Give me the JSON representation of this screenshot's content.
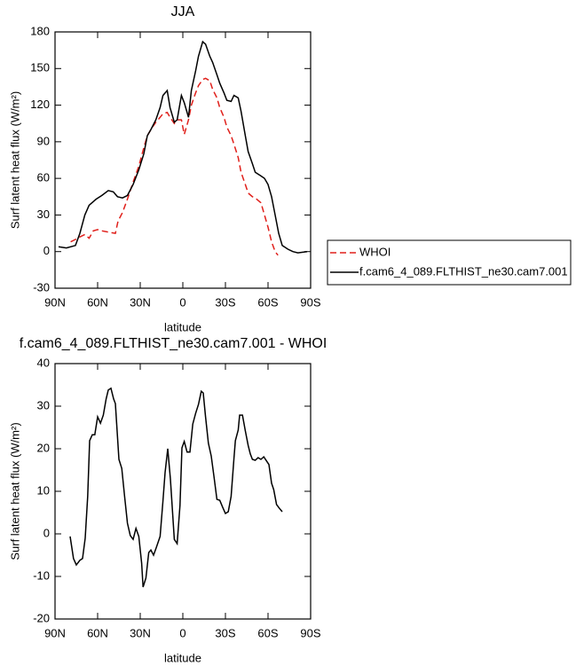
{
  "chart_data": [
    {
      "type": "line",
      "title": "JJA",
      "xlabel": "latitude",
      "ylabel": "Surf latent heat flux (W/m²)",
      "xlim": [
        90,
        -90
      ],
      "xticks": [
        {
          "value": 90,
          "label": "90N"
        },
        {
          "value": 60,
          "label": "60N"
        },
        {
          "value": 30,
          "label": "30N"
        },
        0,
        {
          "value": -30,
          "label": "30S"
        },
        {
          "value": -60,
          "label": "60S"
        },
        {
          "value": -90,
          "label": "90S"
        }
      ],
      "ylim": [
        -30,
        180
      ],
      "yticks": [
        -30,
        0,
        30,
        60,
        90,
        120,
        150,
        180
      ],
      "legend": "outside-right",
      "series": [
        {
          "name": "WHOI",
          "color": "#e0201b",
          "linestyle": "dashed",
          "x": [
            79,
            75.6,
            72.5,
            69,
            66,
            63,
            60,
            57,
            52.5,
            47.5,
            45.6,
            42.5,
            39,
            35,
            31,
            27.5,
            25,
            22.5,
            19,
            16,
            14,
            11,
            9,
            6,
            4,
            1,
            -1,
            -4,
            -6,
            -9,
            -11,
            -14,
            -16,
            -19,
            -21,
            -24,
            -26,
            -29,
            -31,
            -34,
            -36,
            -39,
            -41,
            -44,
            -46,
            -49,
            -51,
            -55,
            -57.5,
            -60,
            -62.5,
            -65,
            -67
          ],
          "values": [
            8,
            10,
            12,
            14,
            11,
            17,
            18,
            17,
            16,
            15,
            25,
            32,
            43,
            57,
            70,
            85,
            95,
            100,
            106,
            110,
            113,
            114,
            110,
            105,
            108,
            108,
            96,
            108,
            120,
            130,
            136,
            141,
            142,
            140,
            133,
            126,
            118,
            110,
            102,
            95,
            88,
            77,
            65,
            55,
            48,
            45,
            44,
            40,
            30,
            20,
            8,
            0,
            -3
          ]
        },
        {
          "name": "f.cam6_4_089.FLTHIST_ne30.cam7.001",
          "color": "#000000",
          "linestyle": "solid",
          "x": [
            87.5,
            82,
            75.6,
            72.5,
            69,
            66,
            61,
            57,
            52.5,
            49,
            46,
            42.5,
            39,
            35,
            31,
            27.5,
            25,
            22.5,
            19,
            16,
            14,
            11,
            9,
            6,
            4,
            1,
            -1,
            -4,
            -6,
            -9,
            -11,
            -14,
            -16,
            -19,
            -21,
            -24,
            -26,
            -29,
            -31,
            -34,
            -36,
            -39,
            -41,
            -44,
            -46,
            -49,
            -51,
            -55,
            -57.5,
            -60,
            -62.5,
            -65,
            -67.5,
            -70,
            -74,
            -77.5,
            -81,
            -87.5
          ],
          "values": [
            4,
            3,
            5,
            15,
            30,
            38,
            43,
            46,
            50,
            49,
            45,
            44,
            46,
            55,
            67,
            80,
            95,
            100,
            108,
            118,
            128,
            132,
            118,
            106,
            108,
            128,
            122,
            110,
            132,
            148,
            160,
            172,
            170,
            160,
            155,
            145,
            138,
            130,
            124,
            123,
            128,
            126,
            115,
            95,
            82,
            72,
            65,
            62,
            60,
            55,
            45,
            30,
            15,
            5,
            2,
            0,
            -1,
            0
          ]
        }
      ]
    },
    {
      "type": "line",
      "title": "f.cam6_4_089.FLTHIST_ne30.cam7.001 - WHOI",
      "xlabel": "latitude",
      "ylabel": "Surf latent heat flux (W/m²)",
      "xlim": [
        90,
        -90
      ],
      "xticks": [
        {
          "value": 90,
          "label": "90N"
        },
        {
          "value": 60,
          "label": "60N"
        },
        {
          "value": 30,
          "label": "30N"
        },
        0,
        {
          "value": -30,
          "label": "30S"
        },
        {
          "value": -60,
          "label": "60S"
        },
        {
          "value": -90,
          "label": "90S"
        }
      ],
      "ylim": [
        -20,
        40
      ],
      "yticks": [
        -20,
        -10,
        0,
        10,
        20,
        30,
        40
      ],
      "series": [
        {
          "color": "#000000",
          "linestyle": "solid",
          "x": [
            79.4,
            77,
            75,
            72.5,
            70.6,
            68.75,
            67,
            65.6,
            63.75,
            62,
            60,
            58,
            56,
            54,
            52.5,
            50.6,
            48.75,
            47.5,
            45,
            43,
            41,
            39,
            37,
            35,
            33,
            31,
            29,
            28,
            26,
            24,
            22.5,
            20.6,
            18.75,
            16,
            14,
            12.5,
            10.6,
            8.75,
            6,
            4,
            2,
            0.6,
            -1,
            -3,
            -5,
            -7,
            -9,
            -11,
            -13,
            -14.4,
            -16,
            -18,
            -20,
            -22,
            -24,
            -26,
            -28,
            -30,
            -32,
            -34,
            -36,
            -37,
            -39,
            -40,
            -42,
            -44,
            -46,
            -47.5,
            -49,
            -51,
            -53,
            -55,
            -57,
            -59,
            -60.6,
            -62.5,
            -64,
            -66,
            -68,
            -70
          ],
          "values": [
            -0.6,
            -5.8,
            -7.3,
            -6.2,
            -5.8,
            -1,
            8.8,
            21.9,
            23.3,
            23.3,
            27.5,
            26,
            27.9,
            31.7,
            33.8,
            34.2,
            31.7,
            30.6,
            17.5,
            15.4,
            8.8,
            2.5,
            -0.4,
            -1.3,
            1.3,
            -0.6,
            -6.9,
            -12.5,
            -10.4,
            -4.4,
            -3.8,
            -5,
            -3.3,
            -0.6,
            7.7,
            14.4,
            20,
            12.9,
            -1.3,
            -2.3,
            6.7,
            20.2,
            21.7,
            19.2,
            19.2,
            25.8,
            28.3,
            30.4,
            33.5,
            33.1,
            27.5,
            21.3,
            18.3,
            13.3,
            8.1,
            7.9,
            6.3,
            4.8,
            5.2,
            8.8,
            17.7,
            21.9,
            24.4,
            27.9,
            27.9,
            24.2,
            20.8,
            18.8,
            17.5,
            17.3,
            17.9,
            17.5,
            18.1,
            17.1,
            16.3,
            11.9,
            10.4,
            6.9,
            6,
            5.2
          ]
        }
      ]
    }
  ]
}
